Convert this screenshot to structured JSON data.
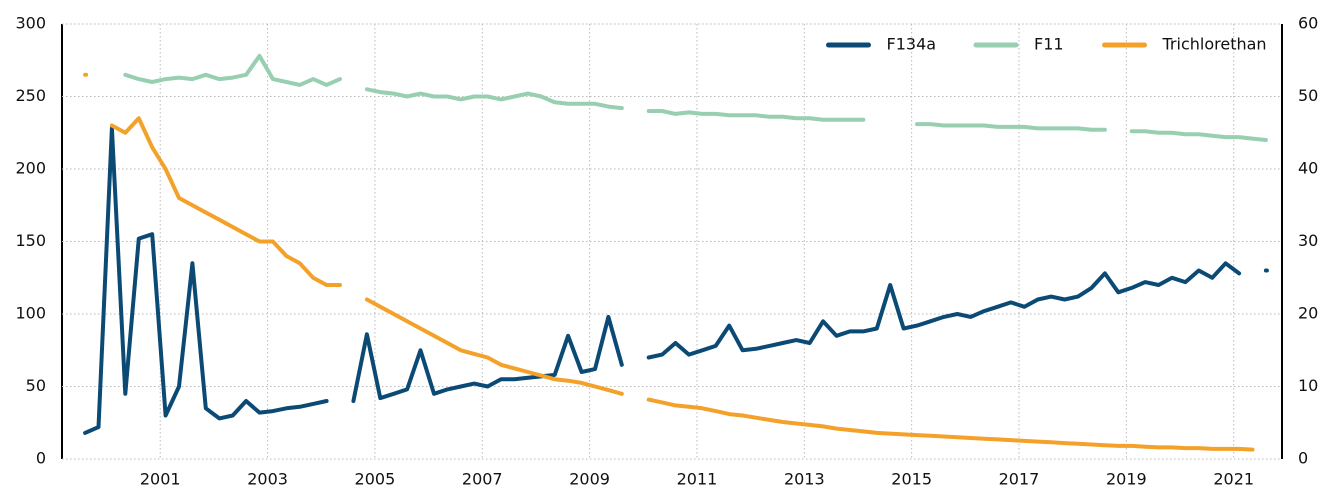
{
  "chart_data": {
    "type": "line",
    "x": [
      1999.6,
      1999.85,
      2000.1,
      2000.35,
      2000.6,
      2000.85,
      2001.1,
      2001.35,
      2001.6,
      2001.85,
      2002.1,
      2002.35,
      2002.6,
      2002.85,
      2003.1,
      2003.35,
      2003.6,
      2003.85,
      2004.1,
      2004.35,
      2004.6,
      2004.85,
      2005.1,
      2005.35,
      2005.6,
      2005.85,
      2006.1,
      2006.35,
      2006.6,
      2006.85,
      2007.1,
      2007.35,
      2007.6,
      2007.85,
      2008.1,
      2008.35,
      2008.6,
      2008.85,
      2009.1,
      2009.35,
      2009.6,
      2009.85,
      2010.1,
      2010.35,
      2010.6,
      2010.85,
      2011.1,
      2011.35,
      2011.6,
      2011.85,
      2012.1,
      2012.35,
      2012.6,
      2012.85,
      2013.1,
      2013.35,
      2013.6,
      2013.85,
      2014.1,
      2014.35,
      2014.6,
      2014.85,
      2015.1,
      2015.35,
      2015.6,
      2015.85,
      2016.1,
      2016.35,
      2016.6,
      2016.85,
      2017.1,
      2017.35,
      2017.6,
      2017.85,
      2018.1,
      2018.35,
      2018.6,
      2018.85,
      2019.1,
      2019.35,
      2019.6,
      2019.85,
      2020.1,
      2020.35,
      2020.6,
      2020.85,
      2021.1,
      2021.35,
      2021.6
    ],
    "series": [
      {
        "name": "F134a",
        "color": "#0b4a75",
        "values": [
          18,
          22,
          228,
          45,
          152,
          155,
          30,
          50,
          135,
          35,
          28,
          30,
          40,
          32,
          33,
          35,
          36,
          38,
          40,
          null,
          40,
          86,
          42,
          45,
          48,
          75,
          45,
          48,
          50,
          52,
          50,
          55,
          55,
          56,
          57,
          58,
          85,
          60,
          62,
          98,
          65,
          null,
          70,
          72,
          80,
          72,
          75,
          78,
          92,
          75,
          76,
          78,
          80,
          82,
          80,
          95,
          85,
          88,
          88,
          90,
          120,
          90,
          92,
          95,
          98,
          100,
          98,
          102,
          105,
          108,
          105,
          110,
          112,
          110,
          112,
          118,
          128,
          115,
          118,
          122,
          120,
          125,
          122,
          130,
          125,
          135,
          128,
          null,
          130
        ]
      },
      {
        "name": "F11",
        "color": "#97cfb0",
        "values": [
          null,
          null,
          null,
          265,
          262,
          260,
          262,
          263,
          262,
          265,
          262,
          263,
          265,
          278,
          262,
          260,
          258,
          262,
          258,
          262,
          null,
          255,
          253,
          252,
          250,
          252,
          250,
          250,
          248,
          250,
          250,
          248,
          250,
          252,
          250,
          246,
          245,
          245,
          245,
          243,
          242,
          null,
          240,
          240,
          238,
          239,
          238,
          238,
          237,
          237,
          237,
          236,
          236,
          235,
          235,
          234,
          234,
          234,
          234,
          null,
          null,
          null,
          231,
          231,
          230,
          230,
          230,
          230,
          229,
          229,
          229,
          228,
          228,
          228,
          228,
          227,
          227,
          null,
          226,
          226,
          225,
          225,
          224,
          224,
          223,
          222,
          222,
          221,
          220
        ]
      },
      {
        "name": "Trichlorethan",
        "color": "#f4a12a",
        "axis": "y2",
        "values": [
          53,
          null,
          46,
          45,
          47,
          43,
          40,
          36,
          35,
          34,
          33,
          32,
          31,
          30,
          30,
          28,
          27,
          25,
          24,
          24,
          null,
          22,
          21,
          20,
          19,
          18,
          17,
          16,
          15,
          14.5,
          14,
          13,
          12.5,
          12,
          11.5,
          11,
          10.8,
          10.5,
          10,
          9.5,
          9,
          null,
          8.2,
          7.8,
          7.4,
          7.2,
          7,
          6.6,
          6.2,
          6,
          5.7,
          5.4,
          5.1,
          4.9,
          4.7,
          4.5,
          4.2,
          4,
          3.8,
          3.6,
          3.5,
          3.4,
          3.3,
          3.2,
          3.1,
          3,
          2.9,
          2.8,
          2.7,
          2.6,
          2.5,
          2.4,
          2.3,
          2.2,
          2.1,
          2,
          1.9,
          1.8,
          1.8,
          1.7,
          1.6,
          1.6,
          1.5,
          1.5,
          1.4,
          1.4,
          1.4,
          1.3,
          null
        ]
      }
    ],
    "xlim": [
      1999.17,
      2021.9
    ],
    "xticks": [
      2001,
      2003,
      2005,
      2007,
      2009,
      2011,
      2013,
      2015,
      2017,
      2019,
      2021
    ],
    "ylim": [
      0,
      300
    ],
    "yticks": [
      0,
      50,
      100,
      150,
      200,
      250,
      300
    ],
    "y2lim": [
      0,
      60
    ],
    "y2ticks": [
      0,
      10,
      20,
      30,
      40,
      50,
      60
    ],
    "grid": true,
    "legend": "upper right"
  }
}
